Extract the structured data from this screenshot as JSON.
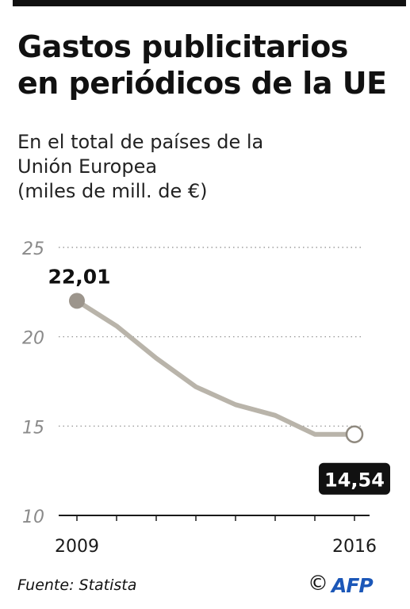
{
  "header": {
    "title_line1": "Gastos publicitarios",
    "title_line2": "en periódicos de la UE"
  },
  "subtitle": {
    "line1": "En el total de países de la",
    "line2": "Unión Europea",
    "line3": "(miles de mill. de €)"
  },
  "chart_data": {
    "type": "line",
    "x": [
      2009,
      2010,
      2011,
      2012,
      2013,
      2014,
      2015,
      2016
    ],
    "series": [
      {
        "values": [
          22.01,
          20.6,
          18.8,
          17.2,
          16.2,
          15.6,
          14.54,
          14.54
        ]
      }
    ],
    "x_tick_labels": [
      {
        "x": 2009,
        "label": "2009"
      },
      {
        "x": 2016,
        "label": "2016"
      }
    ],
    "y_ticks": [
      10,
      15,
      20,
      25
    ],
    "ylim": [
      10,
      25
    ],
    "xlim": [
      2009,
      2016
    ],
    "grid": true,
    "annotations": [
      {
        "x": 2009,
        "value": 22.01,
        "label": "22,01"
      },
      {
        "x": 2016,
        "value": 14.54,
        "label": "14,54"
      }
    ],
    "colors": {
      "line": "#b9b4aa",
      "start_marker": "#9c958c",
      "end_marker": "#ffffff",
      "grid": "#8a8a8a"
    }
  },
  "footer": {
    "source": "Fuente: Statista",
    "copyright_symbol": "©",
    "agency": "AFP"
  }
}
